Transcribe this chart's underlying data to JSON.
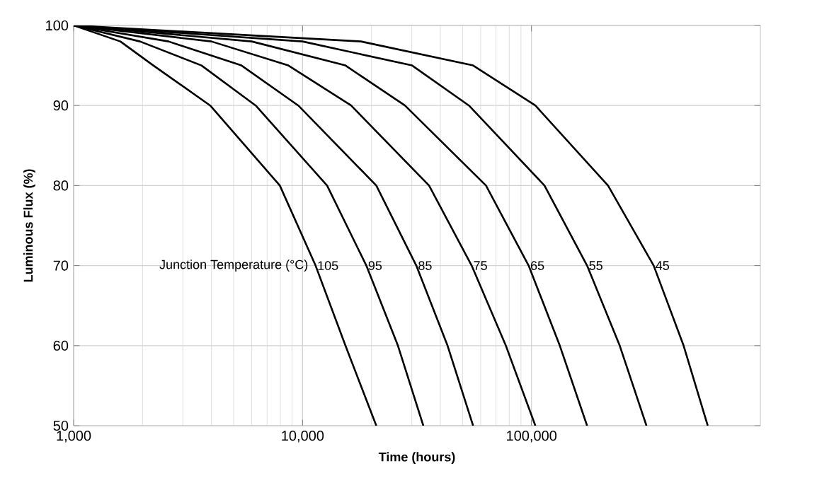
{
  "chart_data": {
    "type": "line",
    "xlabel": "Time (hours)",
    "ylabel": "Luminous Flux (%)",
    "log": "x",
    "grid": true,
    "marker": "none",
    "line_style": "solid",
    "xlim": [
      1000,
      1000000
    ],
    "xticks": [
      {
        "value": 1000,
        "label": "1,000"
      },
      {
        "value": 10000,
        "label": "10,000"
      },
      {
        "value": 100000,
        "label": "100,000"
      }
    ],
    "ylim": [
      50,
      100
    ],
    "yticks": [
      50,
      60,
      70,
      80,
      90,
      100
    ],
    "annotations": [
      "Junction Temperature (°C)"
    ],
    "series": [
      {
        "name": "105",
        "color": "#000000",
        "x": [
          1000,
          1600,
          2230,
          3950,
          7960,
          11400,
          15400,
          21000
        ],
        "values": [
          100,
          98,
          95,
          90,
          80,
          70,
          60,
          50
        ]
      },
      {
        "name": "95",
        "color": "#000000",
        "x": [
          1000,
          1950,
          3620,
          6240,
          12800,
          19000,
          26100,
          33700
        ],
        "values": [
          100,
          98,
          95,
          90,
          80,
          70,
          60,
          50
        ]
      },
      {
        "name": "85",
        "color": "#000000",
        "x": [
          1000,
          2600,
          5410,
          9580,
          21000,
          31400,
          43000,
          55600
        ],
        "values": [
          100,
          98,
          95,
          90,
          80,
          70,
          60,
          50
        ]
      },
      {
        "name": "75",
        "color": "#000000",
        "x": [
          1000,
          4000,
          8670,
          16300,
          35700,
          54800,
          77300,
          104000
        ],
        "values": [
          100,
          98,
          95,
          90,
          80,
          70,
          60,
          50
        ]
      },
      {
        "name": "65",
        "color": "#000000",
        "x": [
          1000,
          6000,
          15400,
          28000,
          63300,
          97200,
          133000,
          175000
        ],
        "values": [
          100,
          98,
          95,
          90,
          80,
          70,
          60,
          50
        ]
      },
      {
        "name": "55",
        "color": "#000000",
        "x": [
          1000,
          10000,
          30100,
          53300,
          114000,
          175000,
          243000,
          318000
        ],
        "values": [
          100,
          98,
          95,
          90,
          80,
          70,
          60,
          50
        ]
      },
      {
        "name": "45",
        "color": "#000000",
        "x": [
          1000,
          18000,
          55600,
          104000,
          216000,
          342000,
          462000,
          589000
        ],
        "values": [
          100,
          98,
          95,
          90,
          80,
          70,
          60,
          50
        ]
      }
    ]
  }
}
